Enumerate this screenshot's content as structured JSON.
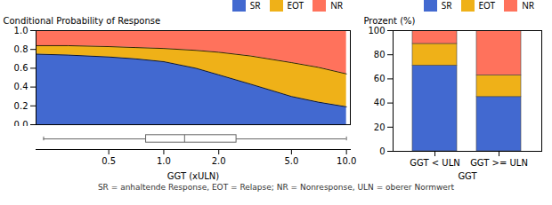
{
  "chart_data": [
    {
      "type": "area",
      "stacked": true,
      "log": "x",
      "x": [
        0.2,
        0.3,
        0.5,
        0.7,
        1.0,
        1.5,
        2.0,
        3.0,
        5.0,
        7.0,
        10.0
      ],
      "series": [
        {
          "name": "SR",
          "values": [
            0.75,
            0.74,
            0.72,
            0.7,
            0.67,
            0.6,
            0.53,
            0.43,
            0.3,
            0.24,
            0.19
          ]
        },
        {
          "name": "EOT",
          "values": [
            0.09,
            0.1,
            0.11,
            0.12,
            0.14,
            0.19,
            0.24,
            0.3,
            0.36,
            0.37,
            0.35
          ]
        },
        {
          "name": "NR",
          "values": [
            0.16,
            0.16,
            0.17,
            0.18,
            0.19,
            0.21,
            0.23,
            0.27,
            0.34,
            0.39,
            0.46
          ]
        }
      ],
      "xlim": [
        0.2,
        10.5
      ],
      "ylim": [
        0,
        1
      ],
      "yticks": [
        {
          "value": 0,
          "label": "0.0"
        },
        0.2,
        0.4,
        0.6,
        0.8,
        {
          "value": 1,
          "label": "1.0"
        }
      ],
      "ylabel": "Conditional Probability of Response",
      "tick_labels": "y",
      "legend": "upper right"
    },
    {
      "type": "box",
      "min": 0.22,
      "q1": 0.8,
      "median": 1.3,
      "q3": 2.5,
      "max": 10.0,
      "log": "x",
      "xlim": [
        0.2,
        10.5
      ],
      "xticks": [
        0.5,
        {
          "value": 1,
          "label": "1.0"
        },
        {
          "value": 2,
          "label": "2.0"
        },
        {
          "value": 5,
          "label": "5.0"
        },
        {
          "value": 10,
          "label": "10.0"
        }
      ],
      "xlabel": "GGT (xULN)",
      "tick_labels": "x"
    },
    {
      "type": "bar",
      "stacked": true,
      "categories": [
        "GGT < ULN",
        "GGT >= ULN"
      ],
      "series": [
        {
          "name": "SR",
          "values": [
            71,
            45
          ]
        },
        {
          "name": "EOT",
          "values": [
            18,
            18
          ]
        },
        {
          "name": "NR",
          "values": [
            11,
            37
          ]
        }
      ],
      "ylim": [
        0,
        100
      ],
      "yticks": [
        0,
        20,
        40,
        60,
        80,
        100
      ],
      "ylabel": "Prozent (%)",
      "xlabel": "GGT",
      "legend": "upper right"
    }
  ],
  "footnote": "SR = anhaltende Response, EOT = Relapse; NR = Nonresponse, ULN = oberer Normwert"
}
